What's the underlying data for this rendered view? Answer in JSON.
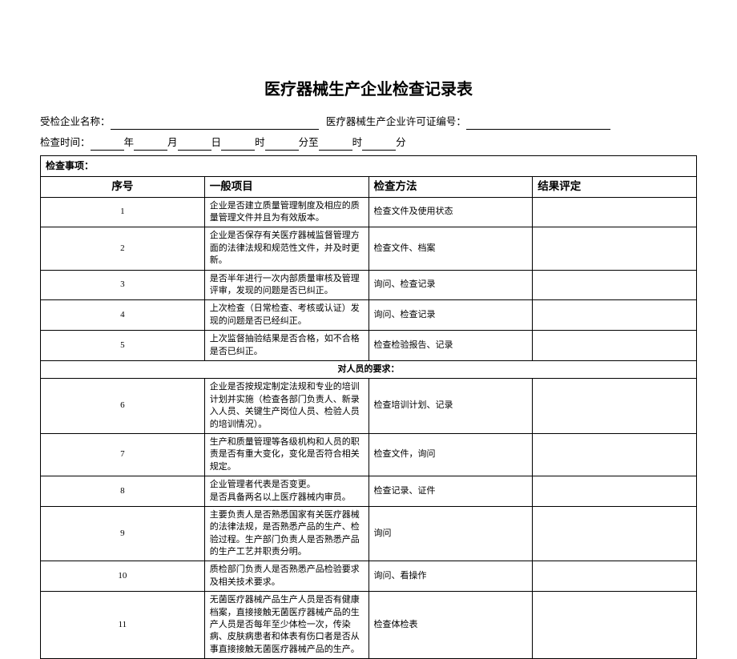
{
  "title": "医疗器械生产企业检查记录表",
  "header": {
    "company_label": "受检企业名称：",
    "license_label": "医疗器械生产企业许可证编号：",
    "time_label": "检查时间：",
    "year": "年",
    "month": "月",
    "day": "日",
    "hour": "时",
    "minute": "分至",
    "hour2": "时",
    "minute2": "分"
  },
  "matters_label": "检查事项：",
  "columns": {
    "seq": "序号",
    "item": "一般项目",
    "method": "检查方法",
    "result": "结果评定"
  },
  "section_personnel": "对人员的要求：",
  "rows": [
    {
      "seq": "1",
      "item": "企业是否建立质量管理制度及相应的质量管理文件并且为有效版本。",
      "method": "检查文件及使用状态",
      "result": ""
    },
    {
      "seq": "2",
      "item": "企业是否保存有关医疗器械监督管理方面的法律法规和规范性文件，并及时更新。",
      "method": "检查文件、档案",
      "result": ""
    },
    {
      "seq": "3",
      "item": "是否半年进行一次内部质量审核及管理评审，发现的问题是否已纠正。",
      "method": "询问、检查记录",
      "result": ""
    },
    {
      "seq": "4",
      "item": "上次检查（日常检查、考核或认证）发现的问题是否已经纠正。",
      "method": "询问、检查记录",
      "result": ""
    },
    {
      "seq": "5",
      "item": "上次监督抽验结果是否合格，如不合格是否已纠正。",
      "method": "检查检验报告、记录",
      "result": ""
    }
  ],
  "rows2": [
    {
      "seq": "6",
      "item": "企业是否按规定制定法规和专业的培训计划并实施（检查各部门负责人、新录入人员、关键生产岗位人员、检验人员的培训情况）。",
      "method": "检查培训计划、记录",
      "result": ""
    },
    {
      "seq": "7",
      "item": "生产和质量管理等各级机构和人员的职责是否有重大变化，变化是否符合相关规定。",
      "method": "检查文件，询问",
      "result": ""
    },
    {
      "seq": "8",
      "item": "企业管理者代表是否变更。\n是否具备两名以上医疗器械内审员。",
      "method": "检查记录、证件",
      "result": ""
    },
    {
      "seq": "9",
      "item": "主要负责人是否熟悉国家有关医疗器械的法律法规，是否熟悉产品的生产、检验过程。生产部门负责人是否熟悉产品的生产工艺并职责分明。",
      "method": "询问",
      "result": ""
    },
    {
      "seq": "10",
      "item": "质检部门负责人是否熟悉产品检验要求及相关技术要求。",
      "method": "询问、看操作",
      "result": ""
    },
    {
      "seq": "11",
      "item": "无菌医疗器械产品生产人员是否有健康档案，直接接触无菌医疗器械产品的生产人员是否每年至少体检一次，传染病、皮肤病患者和体表有伤口者是否从事直接接触无菌医疗器械产品的生产。",
      "method": "检查体检表",
      "result": ""
    }
  ],
  "colors": {
    "text": "#000000",
    "background": "#ffffff",
    "border": "#000000",
    "watermark": "rgba(200,200,200,0.25)"
  },
  "watermark_text": ""
}
